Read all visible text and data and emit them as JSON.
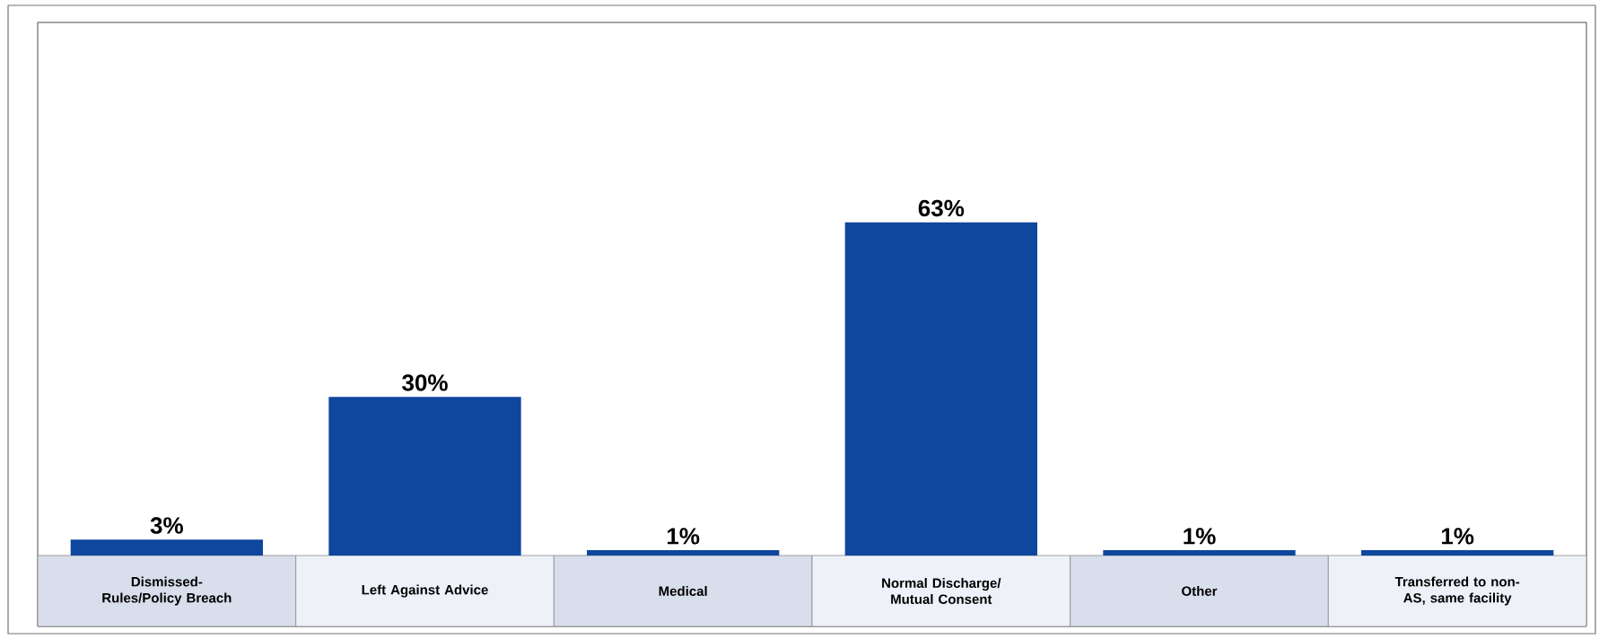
{
  "chart_data": {
    "type": "bar",
    "categories": [
      "Dismissed-Rules/Policy Breach",
      "Left Against Advice",
      "Medical",
      "Normal Discharge/ Mutual Consent",
      "Other",
      "Transferred to non-AS, same facility"
    ],
    "values": [
      3,
      30,
      1,
      63,
      1,
      1
    ],
    "color": "#0e479d",
    "value_labels": [
      "3%",
      "30%",
      "1%",
      "63%",
      "1%",
      "1%"
    ]
  }
}
